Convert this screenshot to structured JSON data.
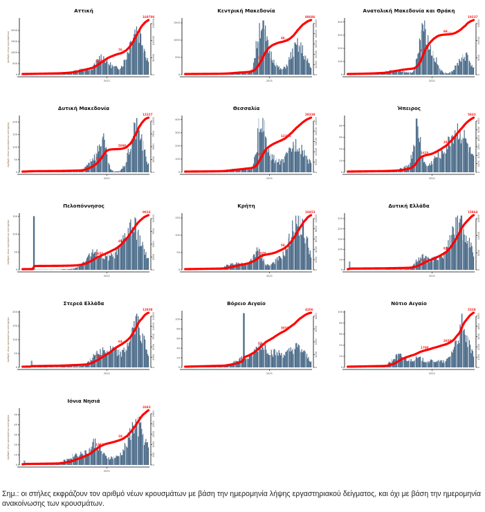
{
  "colors": {
    "bars": "#4a6a88",
    "bars_light": "#b9c8d6",
    "cumulative_line": "#ff0000",
    "labels": "#ff2020",
    "axis": "#000000"
  },
  "note": "Σημ.: οι στήλες εκφράζουν τον αριθμό νέων κρουσμάτων με βάση την ημερομηνία λήψης εργαστηριακού δείγματος, και όχι με βάση την ημερομηνία ανακοίνωσης των κρουσμάτων.",
  "chart_data": [
    {
      "type": "bar+line",
      "title": "Αττική",
      "ylabel": "Αριθμός νέων κρουσμάτων",
      "xlabel": "2021",
      "ylim": [
        0,
        2500
      ],
      "yticks": [
        0,
        500,
        1000,
        1500,
        2000
      ],
      "y2ticks": [
        0,
        50000,
        100000,
        150000
      ],
      "cum_labels": [
        "37685",
        "76...",
        "169706"
      ],
      "final_total": 169706,
      "profile": "attica"
    },
    {
      "type": "bar+line",
      "title": "Κεντρική Μακεδονία",
      "ylabel": "",
      "xlabel": "2021",
      "ylim": [
        0,
        1600
      ],
      "yticks": [
        0,
        500,
        1000,
        1500
      ],
      "y2ticks": [
        0,
        10000,
        20000,
        30000,
        40000,
        50000
      ],
      "cum_labels": [
        "37...",
        "46...",
        "88686"
      ],
      "final_total": 88686,
      "profile": "cmac"
    },
    {
      "type": "bar+line",
      "title": "Ανατολική Μακεδονία και Θράκη",
      "ylabel": "",
      "xlabel": "2021",
      "ylim": [
        0,
        420
      ],
      "yticks": [
        0,
        100,
        200,
        300,
        400
      ],
      "y2ticks": [
        0,
        5000,
        10000,
        15000
      ],
      "cum_labels": [
        "67...",
        "99...",
        "19237"
      ],
      "final_total": 19237,
      "profile": "emac"
    },
    {
      "type": "bar+line",
      "title": "Δυτική Μακεδονία",
      "ylabel": "Αριθμός νέων κρουσμάτων ανά ημέρα",
      "xlabel": "2021",
      "ylim": [
        0,
        220
      ],
      "yticks": [
        0,
        50,
        100,
        150,
        200
      ],
      "y2ticks": [
        0,
        2500,
        5000,
        7500,
        10000
      ],
      "cum_labels": [
        "26...",
        "5090",
        "12227"
      ],
      "final_total": 12227,
      "profile": "wmac"
    },
    {
      "type": "bar+line",
      "title": "Θεσσαλία",
      "ylabel": "",
      "xlabel": "2021",
      "ylim": [
        0,
        420
      ],
      "yticks": [
        0,
        100,
        200,
        300,
        400
      ],
      "y2ticks": [
        0,
        5000,
        10000,
        15000,
        20000,
        25000
      ],
      "cum_labels": [
        "83...",
        "13226",
        "28338"
      ],
      "final_total": 28338,
      "profile": "thes"
    },
    {
      "type": "bar+line",
      "title": "Ήπειρος",
      "ylabel": "",
      "xlabel": "2021",
      "ylim": [
        0,
        95
      ],
      "yticks": [
        0,
        20,
        40,
        60,
        80
      ],
      "y2ticks": [
        0,
        1000,
        2000,
        3000,
        4000,
        5000,
        6000
      ],
      "cum_labels": [
        "1625",
        "29...",
        "5833"
      ],
      "final_total": 5833,
      "profile": "epir"
    },
    {
      "type": "bar+line",
      "title": "Πελοπόννησος",
      "ylabel": "Αριθμός νέων κρουσμάτων ανά ημέρα",
      "xlabel": "2021",
      "ylim": [
        0,
        155
      ],
      "yticks": [
        0,
        50,
        100,
        150
      ],
      "y2ticks": [
        0,
        2500,
        5000,
        7500,
        10000
      ],
      "cum_labels": [
        "2651",
        "49...",
        "9916"
      ],
      "final_total": 9916,
      "profile": "pelo"
    },
    {
      "type": "bar+line",
      "title": "Κρήτη",
      "ylabel": "",
      "xlabel": "2021",
      "ylim": [
        0,
        160
      ],
      "yticks": [
        0,
        50,
        100,
        150
      ],
      "y2ticks": [
        0,
        2000,
        4000,
        6000,
        8000,
        10000
      ],
      "cum_labels": [
        "3628",
        "58...",
        "10453"
      ],
      "final_total": 10453,
      "profile": "crete"
    },
    {
      "type": "bar+line",
      "title": "Δυτική Ελλάδα",
      "ylabel": "",
      "xlabel": "2021",
      "ylim": [
        0,
        270
      ],
      "yticks": [
        0,
        50,
        100,
        150,
        200,
        250
      ],
      "y2ticks": [
        0,
        5000,
        10000,
        15000
      ],
      "cum_labels": [
        "42...",
        "82...",
        "15964"
      ],
      "final_total": 15964,
      "profile": "wgr"
    },
    {
      "type": "bar+line",
      "title": "Στερεά Ελλάδα",
      "ylabel": "Αριθμός νέων κρουσμάτων ανά ημέρα",
      "xlabel": "2021",
      "ylim": [
        0,
        200
      ],
      "yticks": [
        0,
        50,
        100,
        150,
        200
      ],
      "y2ticks": [
        0,
        2500,
        5000,
        7500,
        10000,
        12500
      ],
      "cum_labels": [
        "3839",
        "64...",
        "12838"
      ],
      "final_total": 12838,
      "profile": "sgr"
    },
    {
      "type": "bar+line",
      "title": "Βόρειο Αιγαίο",
      "ylabel": "",
      "xlabel": "2021",
      "ylim": [
        0,
        115
      ],
      "yticks": [
        0,
        20,
        40,
        60,
        80,
        100
      ],
      "y2ticks": [
        0,
        1000,
        2000,
        3000,
        4000
      ],
      "cum_labels": [
        "12...",
        "3036",
        "4206"
      ],
      "final_total": 4206,
      "profile": "naeg"
    },
    {
      "type": "bar+line",
      "title": "Νότιο Αιγαίο",
      "ylabel": "",
      "xlabel": "2021",
      "ylim": [
        0,
        100
      ],
      "yticks": [
        0,
        20,
        40,
        60,
        80,
        100
      ],
      "y2ticks": [
        0,
        1000,
        2000,
        3000,
        4000,
        5000
      ],
      "cum_labels": [
        "1700",
        "2658",
        "5328"
      ],
      "final_total": 5328,
      "profile": "saeg"
    },
    {
      "type": "bar+line",
      "title": "Ιόνια Νησιά",
      "ylabel": "Αριθμός νέων κρουσμάτων ανά ημέρα",
      "xlabel": "2021",
      "ylim": [
        0,
        55
      ],
      "yticks": [
        0,
        10,
        20,
        30,
        40,
        50
      ],
      "y2ticks": [
        0,
        500,
        1000,
        1500,
        2000,
        2500
      ],
      "cum_labels": [
        "1242",
        "19...",
        "2683"
      ],
      "final_total": 2683,
      "profile": "ion"
    }
  ]
}
